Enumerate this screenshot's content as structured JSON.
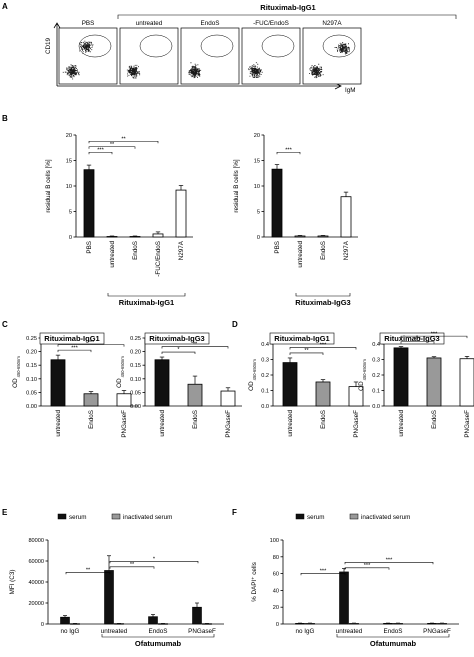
{
  "panels": {
    "A": {
      "letter": "A",
      "group_title": "Rituximab-IgG1",
      "plot_labels": [
        "PBS",
        "untreated",
        "EndoS",
        "-FUC/EndoS",
        "N297A"
      ],
      "x_label": "IgM",
      "y_label": "CD19"
    },
    "B": {
      "letter": "B"
    },
    "C": {
      "letter": "C"
    },
    "D": {
      "letter": "D"
    },
    "E": {
      "letter": "E"
    },
    "F": {
      "letter": "F"
    }
  },
  "colors": {
    "black_bar": "#111111",
    "grey_bar": "#999999",
    "white_bar": "#ffffff",
    "flow_dots": "#1a1a1a"
  },
  "chart_data": [
    {
      "id": "B1",
      "panel": "B",
      "type": "bar",
      "ylabel": "residual B cells [%]",
      "ylim": [
        0,
        20
      ],
      "yticks": [
        0,
        5,
        10,
        15,
        20
      ],
      "categories": [
        "PBS",
        "untreated",
        "EndoS",
        "-FUC/EndoS",
        "N297A"
      ],
      "values": [
        13.2,
        0.1,
        0.1,
        0.6,
        9.2
      ],
      "errors": [
        0.9,
        0.1,
        0.1,
        0.4,
        0.9
      ],
      "fills": [
        "black",
        "white",
        "white",
        "white",
        "white"
      ],
      "significance": [
        {
          "from": "PBS",
          "to": "untreated",
          "label": "***"
        },
        {
          "from": "PBS",
          "to": "EndoS",
          "label": "**"
        },
        {
          "from": "PBS",
          "to": "-FUC/EndoS",
          "label": "**"
        }
      ],
      "group_bracket": {
        "from": "untreated",
        "to": "N297A",
        "label": "Rituximab-IgG1"
      }
    },
    {
      "id": "B3",
      "panel": "B",
      "type": "bar",
      "ylabel": "residual B cells [%]",
      "ylim": [
        0,
        20
      ],
      "yticks": [
        0,
        5,
        10,
        15,
        20
      ],
      "categories": [
        "PBS",
        "untreated",
        "EndoS",
        "N297A"
      ],
      "values": [
        13.3,
        0.2,
        0.2,
        7.9
      ],
      "errors": [
        0.9,
        0.1,
        0.1,
        0.9
      ],
      "fills": [
        "black",
        "white",
        "white",
        "white"
      ],
      "significance": [
        {
          "from": "PBS",
          "to": "untreated",
          "label": "***"
        }
      ],
      "group_bracket": {
        "from": "untreated",
        "to": "N297A",
        "label": "Rituximab-IgG3"
      }
    },
    {
      "id": "C1",
      "panel": "C",
      "type": "bar",
      "title": "Rituximab-IgG1",
      "ylabel": "OD",
      "ylabel_sub": "450-650nm",
      "ylim": [
        0,
        0.25
      ],
      "yticks": [
        0.0,
        0.05,
        0.1,
        0.15,
        0.2,
        0.25
      ],
      "categories": [
        "untreated",
        "EndoS",
        "PNGaseF"
      ],
      "values": [
        0.17,
        0.045,
        0.045
      ],
      "errors": [
        0.017,
        0.008,
        0.012
      ],
      "fills": [
        "black",
        "grey",
        "white"
      ],
      "significance": [
        {
          "from": "untreated",
          "to": "EndoS",
          "label": "***"
        },
        {
          "from": "untreated",
          "to": "PNGaseF",
          "label": "***"
        }
      ]
    },
    {
      "id": "C3",
      "panel": "C",
      "type": "bar",
      "title": "Rituximab-IgG3",
      "ylabel": "OD",
      "ylabel_sub": "450-650nm",
      "ylim": [
        0,
        0.25
      ],
      "yticks": [
        0.0,
        0.05,
        0.1,
        0.15,
        0.2,
        0.25
      ],
      "categories": [
        "untreated",
        "EndoS",
        "PNGaseF"
      ],
      "values": [
        0.17,
        0.08,
        0.055
      ],
      "errors": [
        0.01,
        0.03,
        0.012
      ],
      "fills": [
        "black",
        "grey",
        "white"
      ],
      "significance": [
        {
          "from": "untreated",
          "to": "EndoS",
          "label": "*"
        },
        {
          "from": "untreated",
          "to": "PNGaseF",
          "label": "**"
        }
      ]
    },
    {
      "id": "D1",
      "panel": "D",
      "type": "bar",
      "title": "Rituximab-IgG1",
      "ylabel": "OD",
      "ylabel_sub": "450-650nm",
      "ylim": [
        0,
        0.4
      ],
      "yticks": [
        0.0,
        0.1,
        0.2,
        0.3,
        0.4
      ],
      "categories": [
        "untreated",
        "EndoS",
        "PNGaseF"
      ],
      "values": [
        0.28,
        0.155,
        0.125
      ],
      "errors": [
        0.03,
        0.015,
        0.03
      ],
      "fills": [
        "black",
        "grey",
        "white"
      ],
      "significance": [
        {
          "from": "untreated",
          "to": "EndoS",
          "label": "**"
        },
        {
          "from": "untreated",
          "to": "PNGaseF",
          "label": "***"
        }
      ]
    },
    {
      "id": "D3",
      "panel": "D",
      "type": "bar",
      "title": "Rituximab-IgG3",
      "ylabel": "OD",
      "ylabel_sub": "450-650nm",
      "ylim": [
        0,
        0.4
      ],
      "yticks": [
        0.0,
        0.1,
        0.2,
        0.3,
        0.4
      ],
      "categories": [
        "untreated",
        "EndoS",
        "PNGaseF"
      ],
      "values": [
        0.375,
        0.31,
        0.305
      ],
      "errors": [
        0.008,
        0.008,
        0.015
      ],
      "fills": [
        "black",
        "grey",
        "white"
      ],
      "significance": [
        {
          "from": "untreated",
          "to": "EndoS",
          "label": "***"
        },
        {
          "from": "untreated",
          "to": "PNGaseF",
          "label": "***"
        }
      ]
    },
    {
      "id": "E",
      "panel": "E",
      "type": "bar",
      "ylabel": "MFI (C3)",
      "ylim": [
        0,
        80000
      ],
      "yticks": [
        0,
        20000,
        40000,
        60000,
        80000
      ],
      "categories": [
        "no IgG",
        "untreated",
        "EndoS",
        "PNGaseF"
      ],
      "series": [
        {
          "name": "serum",
          "values": [
            6500,
            51000,
            7000,
            16000
          ],
          "errors": [
            1500,
            14000,
            2000,
            4000
          ],
          "fill": "black"
        },
        {
          "name": "inactivated serum",
          "values": [
            400,
            500,
            400,
            400
          ],
          "errors": [
            100,
            100,
            100,
            100
          ],
          "fill": "grey"
        }
      ],
      "significance": [
        {
          "from": "no IgG",
          "to": "untreated",
          "label": "**"
        },
        {
          "from": "untreated",
          "to": "EndoS",
          "label": "**"
        },
        {
          "from": "untreated",
          "to": "PNGaseF",
          "label": "*"
        }
      ],
      "group_bracket": {
        "from": "untreated",
        "to": "PNGaseF",
        "label": "Ofatumumab"
      }
    },
    {
      "id": "F",
      "panel": "F",
      "type": "bar",
      "ylabel": "% DAPI⁺ cells",
      "ylim": [
        0,
        100
      ],
      "yticks": [
        0,
        20,
        40,
        60,
        80,
        100
      ],
      "categories": [
        "no IgG",
        "untreated",
        "EndoS",
        "PNGaseF"
      ],
      "series": [
        {
          "name": "serum",
          "values": [
            0.8,
            62,
            0.8,
            0.8
          ],
          "errors": [
            0.3,
            4,
            0.3,
            0.3
          ],
          "fill": "black"
        },
        {
          "name": "inactivated serum",
          "values": [
            0.8,
            0.8,
            0.8,
            0.8
          ],
          "errors": [
            0.3,
            0.3,
            0.3,
            0.3
          ],
          "fill": "grey"
        }
      ],
      "significance": [
        {
          "from": "no IgG",
          "to": "untreated",
          "label": "***"
        },
        {
          "from": "untreated",
          "to": "EndoS",
          "label": "***"
        },
        {
          "from": "untreated",
          "to": "PNGaseF",
          "label": "***"
        }
      ],
      "group_bracket": {
        "from": "untreated",
        "to": "PNGaseF",
        "label": "Ofatumumab"
      }
    }
  ]
}
